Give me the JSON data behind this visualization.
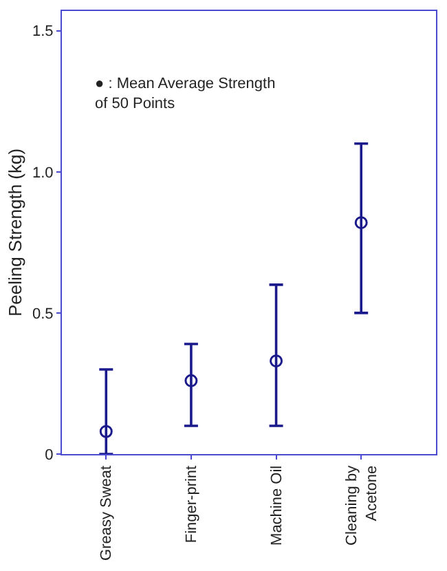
{
  "chart_data": {
    "type": "scatter",
    "ylabel": "Peeling Strength (kg)",
    "categories": [
      "Greasy Sweat",
      "Finger-print",
      "Machine Oil",
      "Cleaning by\nAcetone"
    ],
    "series": [
      {
        "color": "#1a1a8c",
        "values": [
          0.08,
          0.26,
          0.33,
          0.82
        ],
        "errors": [
          [
            0,
            0.3
          ],
          [
            0.1,
            0.39
          ],
          [
            0.1,
            0.6
          ],
          [
            0.5,
            1.1
          ]
        ]
      }
    ],
    "ylim": [
      0,
      1.57
    ],
    "yticks": [
      0,
      {
        "value": 0.5,
        "label": "0.5"
      },
      {
        "value": 1,
        "label": "1.0"
      },
      {
        "value": 1.5,
        "label": "1.5"
      }
    ],
    "annotations": [
      "● : Mean Average Strength\nof 50 Points"
    ],
    "marker": "circle"
  }
}
